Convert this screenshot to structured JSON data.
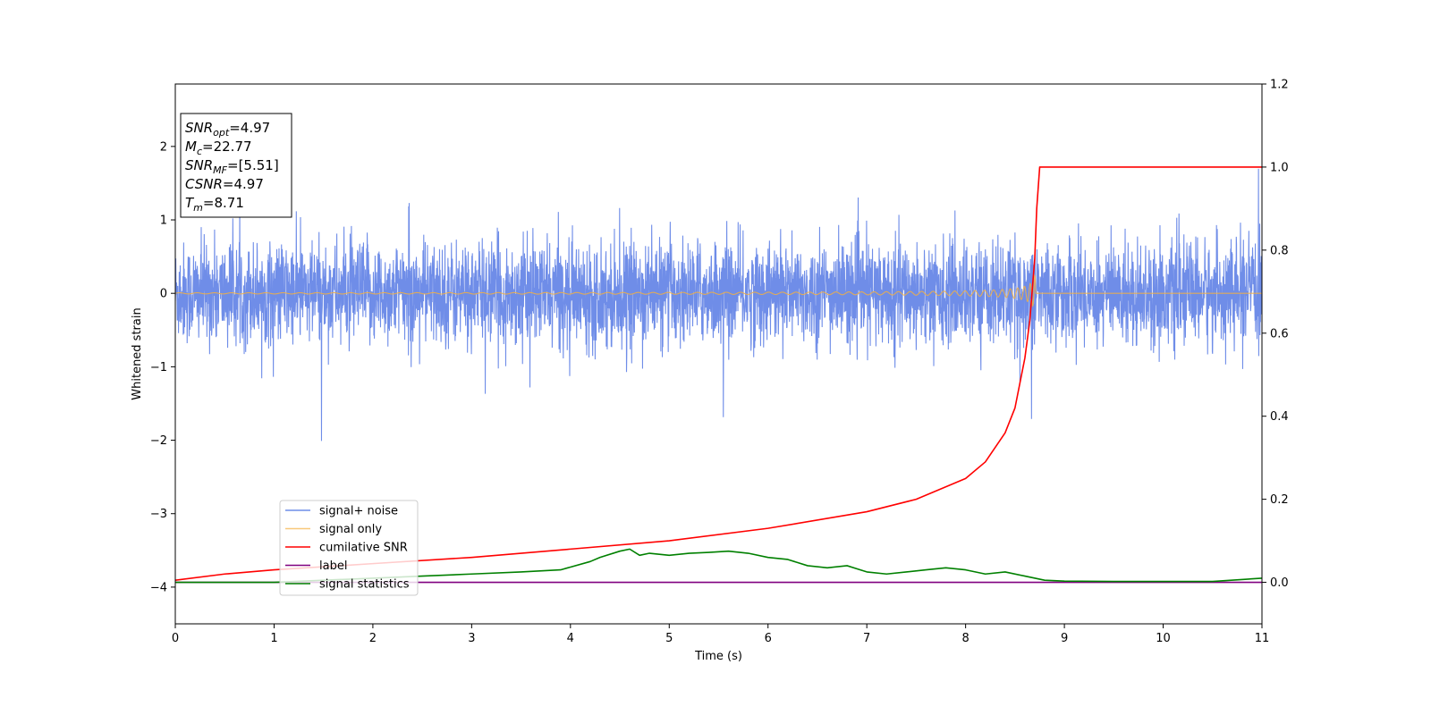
{
  "chart_data": {
    "type": "line",
    "xlabel": "Time (s)",
    "ylabel": "Whitened strain",
    "xlim": [
      0,
      11
    ],
    "ylim_left": [
      -4.5,
      2.85
    ],
    "ylim_right": [
      -0.1,
      1.2
    ],
    "x_ticks": [
      "0",
      "1",
      "2",
      "3",
      "4",
      "5",
      "6",
      "7",
      "8",
      "9",
      "10",
      "11"
    ],
    "y_ticks_left": [
      "2",
      "1",
      "0",
      "−1",
      "−2",
      "−3",
      "−4"
    ],
    "y_ticks_right": [
      "1.2",
      "1.0",
      "0.8",
      "0.6",
      "0.4",
      "0.2",
      "0.0"
    ],
    "legend_position": "lower-left",
    "info_box": [
      {
        "base": "SNR",
        "sub": "opt",
        "rest": "=4.97"
      },
      {
        "base": "M",
        "sub": "c",
        "rest": "=22.77"
      },
      {
        "base": "SNR",
        "sub": "MF",
        "rest": "=[5.51]"
      },
      {
        "base": "CSNR",
        "sub": "",
        "rest": "=4.97"
      },
      {
        "base": "T",
        "sub": "m",
        "rest": "=8.71"
      }
    ],
    "series": [
      {
        "name": "signal+ noise",
        "axis": "left",
        "color": "#6f8de8",
        "kind": "noise",
        "amplitude_typical": 0.55,
        "amplitude_max": 2.05
      },
      {
        "name": "signal only",
        "axis": "left",
        "color": "#f5b041",
        "kind": "chirp",
        "merger_time": 8.71,
        "peak_amplitude": 0.3
      },
      {
        "name": "cumilative SNR",
        "axis": "right",
        "color": "#ff0000",
        "x": [
          0,
          0.5,
          1,
          2,
          3,
          4,
          5,
          6,
          7,
          7.5,
          8,
          8.2,
          8.4,
          8.5,
          8.6,
          8.65,
          8.7,
          8.72,
          8.75,
          11
        ],
        "y": [
          0.005,
          0.02,
          0.03,
          0.045,
          0.06,
          0.08,
          0.1,
          0.13,
          0.17,
          0.2,
          0.25,
          0.29,
          0.36,
          0.42,
          0.54,
          0.63,
          0.78,
          0.9,
          1.0,
          1.0
        ]
      },
      {
        "name": "label",
        "axis": "right",
        "color": "#800080",
        "x": [
          0,
          11
        ],
        "y": [
          0,
          0
        ]
      },
      {
        "name": "signal statistics",
        "axis": "right",
        "color": "#008000",
        "x": [
          0,
          0.5,
          1,
          1.5,
          2,
          2.5,
          3,
          3.5,
          3.9,
          4.2,
          4.3,
          4.5,
          4.6,
          4.7,
          4.8,
          5,
          5.2,
          5.4,
          5.6,
          5.8,
          6,
          6.2,
          6.4,
          6.6,
          6.8,
          7,
          7.2,
          7.4,
          7.6,
          7.8,
          8,
          8.2,
          8.4,
          8.6,
          8.8,
          9,
          9.5,
          10,
          10.5,
          11
        ],
        "y": [
          0,
          0,
          0,
          0.005,
          0.01,
          0.015,
          0.02,
          0.025,
          0.03,
          0.05,
          0.06,
          0.075,
          0.08,
          0.065,
          0.07,
          0.065,
          0.07,
          0.072,
          0.075,
          0.07,
          0.06,
          0.055,
          0.04,
          0.035,
          0.04,
          0.025,
          0.02,
          0.025,
          0.03,
          0.035,
          0.03,
          0.02,
          0.025,
          0.015,
          0.005,
          0.003,
          0.002,
          0.002,
          0.002,
          0.01
        ]
      }
    ]
  }
}
